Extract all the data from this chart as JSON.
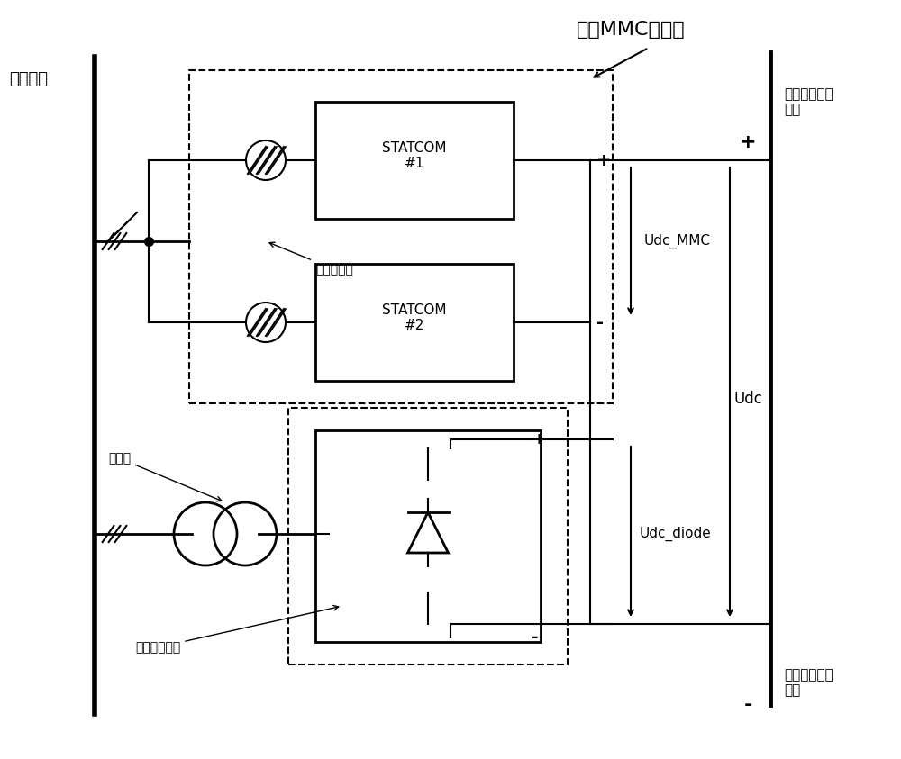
{
  "title": "全桥MMC换流器",
  "label_ac_bus": "交流母线",
  "label_dc_pos": "融冰直流母线\n正极",
  "label_dc_neg": "融冰直流母线\n负极",
  "label_statcom1": "STATCOM\n#1",
  "label_statcom2": "STATCOM\n#2",
  "label_reactor": "连接电抗器",
  "label_transformer": "变压器",
  "label_diode": "二极管整流阀",
  "label_udc_mmc": "Udc_MMC",
  "label_udc": "Udc",
  "label_udc_diode": "Udc_diode",
  "label_plus": "+",
  "label_minus": "-",
  "bg_color": "#ffffff",
  "line_color": "#000000",
  "dashed_color": "#555555"
}
